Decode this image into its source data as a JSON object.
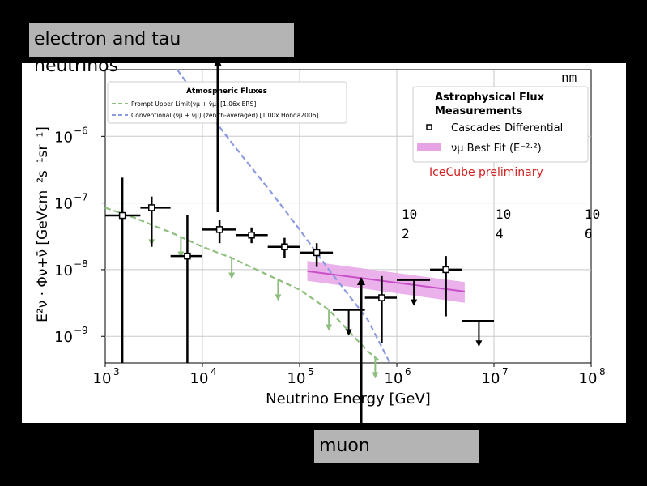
{
  "callouts": {
    "top_line1": "electron and tau",
    "top_line2": "neutrinos",
    "bottom": "muon"
  },
  "chart_data": {
    "type": "scatter",
    "xscale": "log",
    "yscale": "log",
    "xlim": [
      1000,
      100000000
    ],
    "ylim": [
      4e-10,
      1e-05
    ],
    "xlabel": "Neutrino Energy [GeV]",
    "ylabel": "E²ν · Φν+ν̄ [GeVcm⁻²s⁻¹sr⁻¹]",
    "x_ticks": [
      {
        "value": 1000,
        "base": "10",
        "exp": "3"
      },
      {
        "value": 10000,
        "base": "10",
        "exp": "4"
      },
      {
        "value": 100000,
        "base": "10",
        "exp": "5"
      },
      {
        "value": 1000000,
        "base": "10",
        "exp": "6"
      },
      {
        "value": 10000000,
        "base": "10",
        "exp": "7"
      },
      {
        "value": 100000000,
        "base": "10",
        "exp": "8"
      }
    ],
    "y_ticks": [
      {
        "value": 1e-09,
        "base": "10",
        "exp": "−9"
      },
      {
        "value": 1e-08,
        "base": "10",
        "exp": "−8"
      },
      {
        "value": 1e-07,
        "base": "10",
        "exp": "−7"
      },
      {
        "value": 1e-06,
        "base": "10",
        "exp": "−6"
      }
    ],
    "grid": true,
    "legend_atmospheric": {
      "title": "Atmospheric Fluxes",
      "prompt": "Prompt Upper Limit(νμ + ν̄μ) [1.06x ERS]",
      "conventional": "Conventional (νμ + ν̄μ) (zenith-averaged) [1.00x Honda2006]"
    },
    "legend_astro": {
      "title_line1": "Astrophysical Flux",
      "title_line2": "Measurements",
      "cascades": "Cascades Differential",
      "best_fit": "νμ Best Fit (E⁻²·²)",
      "preliminary": "IceCube preliminary"
    },
    "overlay_text": {
      "nm": "nm",
      "ticks": [
        {
          "a": "10",
          "b": "2"
        },
        {
          "a": "10",
          "b": "4"
        },
        {
          "a": "10",
          "b": "6"
        }
      ]
    },
    "colors": {
      "prompt": "#8fbf7f",
      "conventional": "#8c9be0",
      "band": "#e6a3e6",
      "best_fit_line": "#c84fc8",
      "preliminary": "#d42020",
      "points": "#000000"
    },
    "series": [
      {
        "name": "Cascades Differential",
        "points": [
          {
            "x": 1500,
            "y": 6.5e-08,
            "xlo": 1000,
            "xhi": 2300,
            "ylo": 4e-10,
            "yhi": 2.4e-07
          },
          {
            "x": 3000,
            "y": 8.5e-08,
            "xlo": 2300,
            "xhi": 4700,
            "ylo": 2.2e-08,
            "yhi": 1.25e-07
          },
          {
            "x": 7000,
            "y": 1.6e-08,
            "xlo": 4700,
            "xhi": 10000,
            "ylo": 4e-10,
            "yhi": 6.5e-08
          },
          {
            "x": 15000,
            "y": 4e-08,
            "xlo": 10000,
            "xhi": 22000,
            "ylo": 2.5e-08,
            "yhi": 5.5e-08
          },
          {
            "x": 32000,
            "y": 3.3e-08,
            "xlo": 22000,
            "xhi": 47000,
            "ylo": 2.5e-08,
            "yhi": 4.3e-08
          },
          {
            "x": 70000,
            "y": 2.2e-08,
            "xlo": 47000,
            "xhi": 100000,
            "ylo": 1.5e-08,
            "yhi": 3e-08
          },
          {
            "x": 150000,
            "y": 1.8e-08,
            "xlo": 100000,
            "xhi": 220000,
            "ylo": 1.1e-08,
            "yhi": 2.5e-08
          },
          {
            "x": 700000,
            "y": 3.8e-09,
            "xlo": 470000,
            "xhi": 1000000,
            "ylo": 8e-10,
            "yhi": 8e-09
          },
          {
            "x": 3200000,
            "y": 1e-08,
            "xlo": 2200000,
            "xhi": 4700000,
            "ylo": 2e-09,
            "yhi": 1.6e-08
          }
        ],
        "upper_limits": [
          {
            "x": 320000,
            "y": 2.5e-09,
            "xlo": 220000,
            "xhi": 470000
          },
          {
            "x": 1500000,
            "y": 7e-09,
            "xlo": 1000000,
            "xhi": 2200000
          },
          {
            "x": 7000000,
            "y": 1.7e-09,
            "xlo": 4700000,
            "xhi": 10000000
          }
        ]
      },
      {
        "name": "νμ Best Fit (E⁻²·²)",
        "band": {
          "x": [
            120000,
            5000000
          ],
          "upper": [
            1.35e-08,
            6.5e-09
          ],
          "lower": [
            6.8e-09,
            3.2e-09
          ],
          "central": [
            9.5e-09,
            4.7e-09
          ]
        }
      },
      {
        "name": "Prompt Upper Limit(νμ + ν̄μ) [1.06x ERS]",
        "curve": [
          [
            1000,
            8.5e-08
          ],
          [
            2000,
            6e-08
          ],
          [
            5000,
            3.5e-08
          ],
          [
            10000,
            2.2e-08
          ],
          [
            20000,
            1.5e-08
          ],
          [
            50000,
            8e-09
          ],
          [
            100000,
            5e-09
          ],
          [
            200000,
            2.5e-09
          ],
          [
            500000,
            6e-10
          ],
          [
            700000,
            4e-10
          ]
        ],
        "arrows": [
          3000,
          6000,
          20000,
          60000,
          200000,
          600000
        ]
      },
      {
        "name": "Conventional (νμ + ν̄μ) (zenith-averaged) [1.00x Honda2006]",
        "curve": [
          [
            5500,
            1e-05
          ],
          [
            10000,
            3e-06
          ],
          [
            20000,
            8e-07
          ],
          [
            50000,
            1.5e-07
          ],
          [
            100000,
            4e-08
          ],
          [
            200000,
            1e-08
          ],
          [
            500000,
            1.8e-09
          ],
          [
            850000,
            4e-10
          ]
        ]
      }
    ]
  }
}
